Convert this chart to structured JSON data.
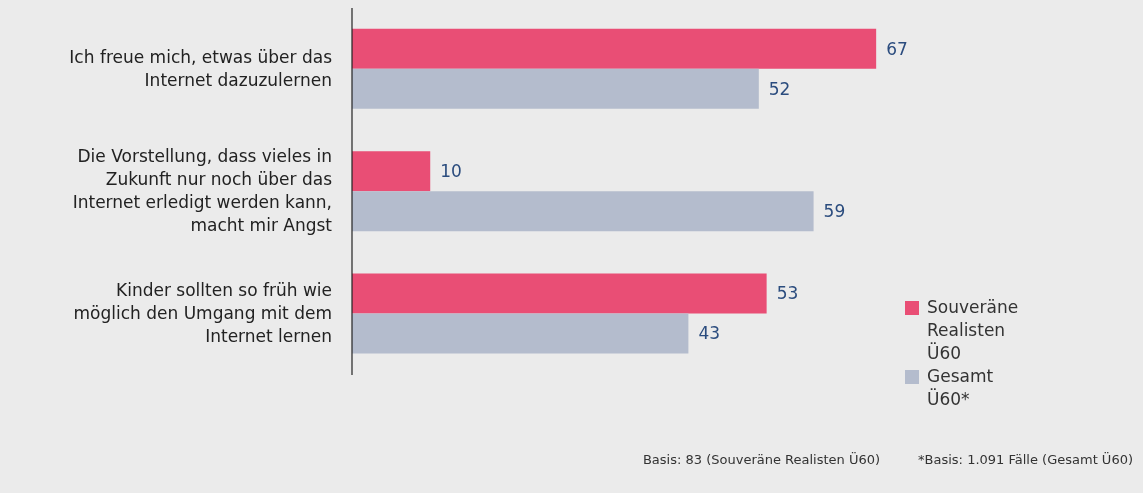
{
  "chart_data": {
    "type": "bar",
    "orientation": "horizontal",
    "categories": [
      "Ich freue mich, etwas über das Internet dazuzulernen",
      "Die Vorstellung, dass vieles in Zukunft nur noch über das Internet erledigt werden kann, macht mir Angst",
      "Kinder sollten so früh wie möglich den Umgang mit dem Internet lernen"
    ],
    "series": [
      {
        "name": "Souveräne Realisten Ü60",
        "color": "#e94e75",
        "values": [
          67,
          10,
          53
        ]
      },
      {
        "name": "Gesamt Ü60*",
        "color": "#b4bccd",
        "values": [
          52,
          59,
          43
        ]
      }
    ],
    "data_labels": true,
    "legend": "bottom right",
    "grid": false,
    "annotations": [
      "Basis: 83 (Souveräne Realisten Ü60)",
      "*Basis: 1.091 Fälle (Gesamt Ü60)"
    ]
  }
}
